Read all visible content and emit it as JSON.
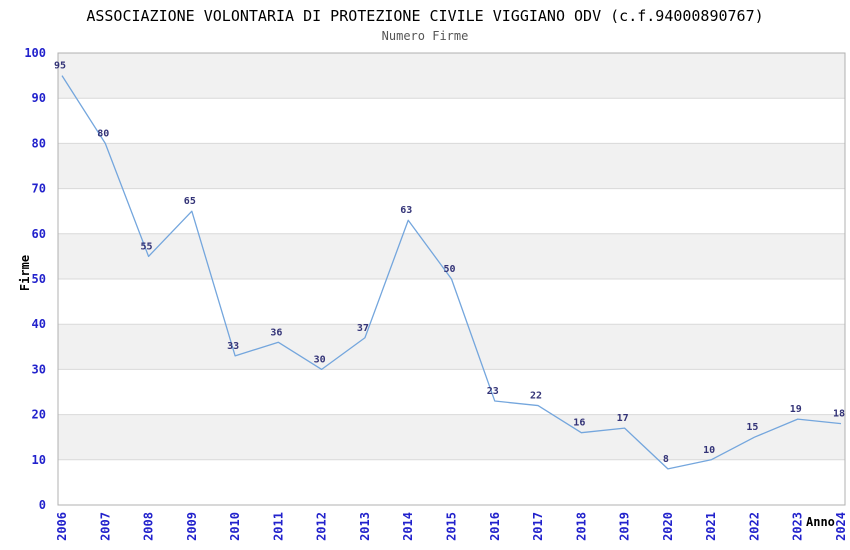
{
  "chart_data": {
    "type": "line",
    "title": "ASSOCIAZIONE VOLONTARIA DI PROTEZIONE CIVILE VIGGIANO ODV (c.f.94000890767)",
    "subtitle": "Numero Firme",
    "xlabel": "Anno",
    "ylabel": "Firme",
    "categories": [
      "2006",
      "2007",
      "2008",
      "2009",
      "2010",
      "2011",
      "2012",
      "2013",
      "2014",
      "2015",
      "2016",
      "2017",
      "2018",
      "2019",
      "2020",
      "2021",
      "2022",
      "2023",
      "2024"
    ],
    "values": [
      95,
      80,
      55,
      65,
      33,
      36,
      30,
      37,
      63,
      50,
      23,
      22,
      16,
      17,
      8,
      10,
      15,
      19,
      18
    ],
    "ylim": [
      0,
      100
    ],
    "ytick_step": 10,
    "grid": "horizontal gridlines every 10, alternating gray bands (10-20, 30-40, 50-60, 70-80, 90-100)",
    "legend": "none",
    "value_labels": "above each point",
    "x_tick_rotation": -90,
    "colors": {
      "line": "#74A6DD",
      "value_label": "#333377",
      "tick_label": "#2222CC",
      "band_gray": "#F1F1F1",
      "gridline": "#D9D9D9",
      "plot_border": "#B0B0B0",
      "title": "#000000",
      "subtitle": "#555555",
      "axis_title": "#000000",
      "background": "#FFFFFF"
    }
  }
}
